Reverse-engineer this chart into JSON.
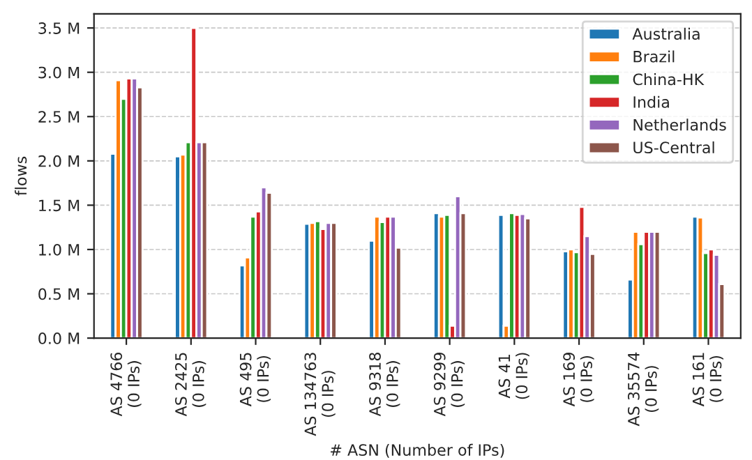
{
  "chart_data": {
    "type": "bar",
    "xlabel": "# ASN (Number of IPs)",
    "ylabel": "flows",
    "categories": [
      "AS 4766\n(0 IPs)",
      "AS 2425\n(0 IPs)",
      "AS 495\n(0 IPs)",
      "AS 134763\n(0 IPs)",
      "AS 9318\n(0 IPs)",
      "AS 9299\n(0 IPs)",
      "AS 41\n(0 IPs)",
      "AS 169\n(0 IPs)",
      "AS 35574\n(0 IPs)",
      "AS 161\n(0 IPs)"
    ],
    "series": [
      {
        "name": "Australia",
        "color": "#1f77b4",
        "values": [
          2.08,
          2.05,
          0.82,
          1.29,
          1.1,
          1.41,
          1.39,
          0.98,
          0.66,
          1.37
        ]
      },
      {
        "name": "Brazil",
        "color": "#ff7f0e",
        "values": [
          2.91,
          2.07,
          0.91,
          1.3,
          1.37,
          1.37,
          0.14,
          1.0,
          1.2,
          1.36
        ]
      },
      {
        "name": "China-HK",
        "color": "#2ca02c",
        "values": [
          2.7,
          2.21,
          1.37,
          1.32,
          1.31,
          1.39,
          1.41,
          0.97,
          1.06,
          0.96
        ]
      },
      {
        "name": "India",
        "color": "#d62728",
        "values": [
          2.93,
          3.5,
          1.43,
          1.23,
          1.37,
          0.14,
          1.39,
          1.48,
          1.2,
          1.0
        ]
      },
      {
        "name": "Netherlands",
        "color": "#9467bd",
        "values": [
          2.93,
          2.21,
          1.7,
          1.3,
          1.37,
          1.6,
          1.4,
          1.15,
          1.2,
          0.94
        ]
      },
      {
        "name": "US-Central",
        "color": "#8c564b",
        "values": [
          2.83,
          2.21,
          1.64,
          1.3,
          1.02,
          1.41,
          1.35,
          0.95,
          1.2,
          0.61
        ]
      }
    ],
    "ylim": [
      0,
      3.66
    ],
    "yticks": [
      {
        "value": 0,
        "label": "0.0 M"
      },
      {
        "value": 0.5,
        "label": "0.5 M"
      },
      {
        "value": 1.0,
        "label": "1.0 M"
      },
      {
        "value": 1.5,
        "label": "1.5 M"
      },
      {
        "value": 2.0,
        "label": "2.0 M"
      },
      {
        "value": 2.5,
        "label": "2.5 M"
      },
      {
        "value": 3.0,
        "label": "3.0 M"
      },
      {
        "value": 3.5,
        "label": "3.5 M"
      }
    ],
    "grid": "y",
    "legend": "top right"
  }
}
